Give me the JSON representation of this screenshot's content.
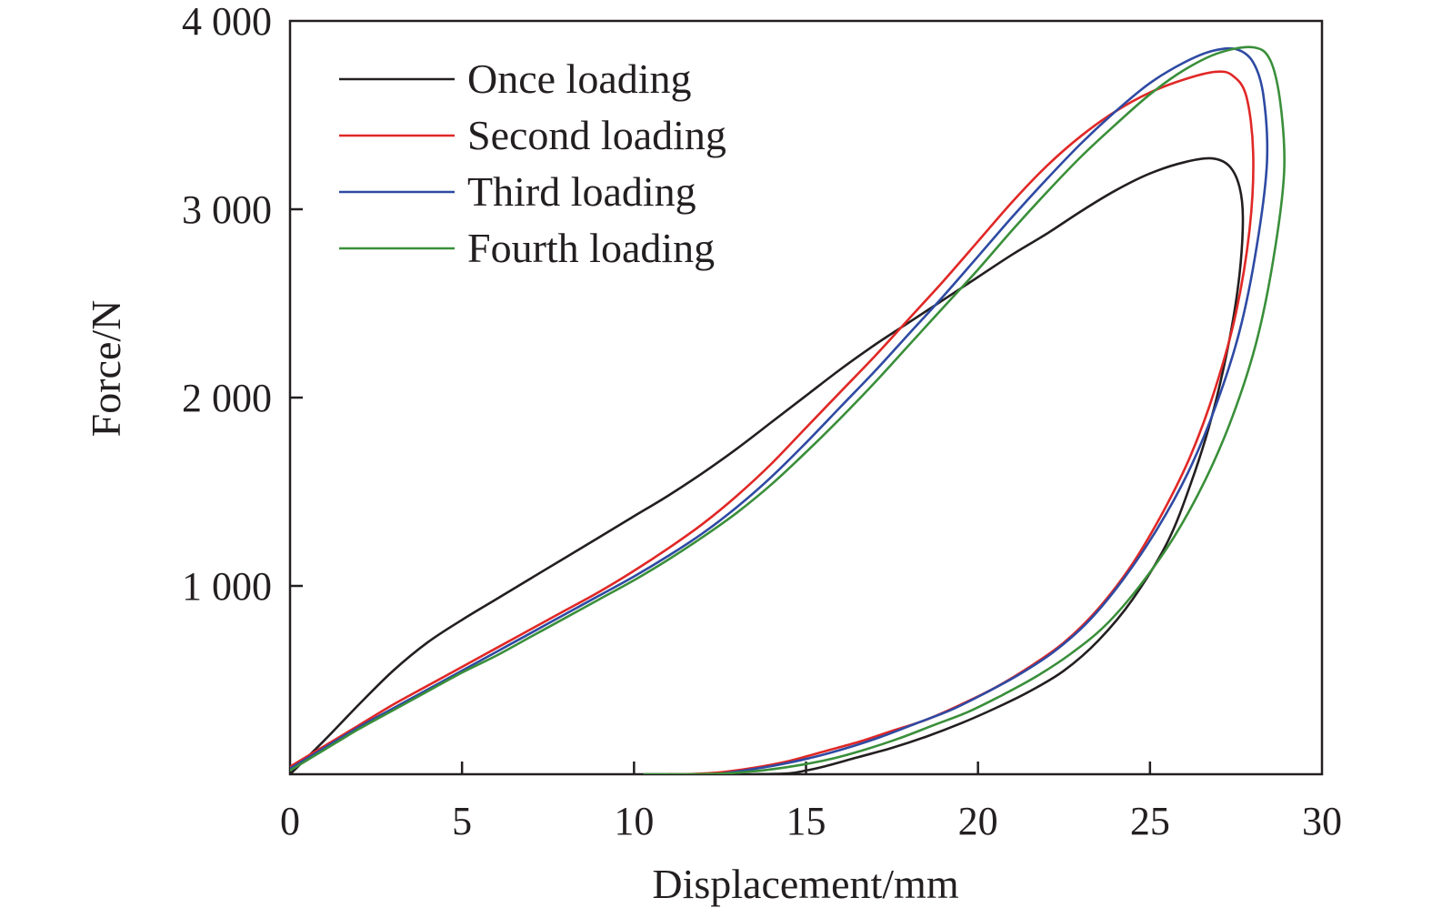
{
  "chart_data": {
    "type": "line",
    "title": "",
    "xlabel": "Displacement/mm",
    "ylabel": "Force/N",
    "xlim": [
      0,
      30
    ],
    "ylim": [
      0,
      4000
    ],
    "xticks": [
      0,
      5,
      10,
      15,
      20,
      25,
      30
    ],
    "xtick_labels": [
      "0",
      "5",
      "10",
      "15",
      "20",
      "25",
      "30"
    ],
    "yticks": [
      1000,
      2000,
      3000,
      4000
    ],
    "ytick_labels": [
      "1 000",
      "2 000",
      "3 000",
      "4 000"
    ],
    "grid": false,
    "legend_position": "top-left",
    "series": [
      {
        "name": "Once loading",
        "color": "#231f20",
        "points": [
          [
            0,
            0
          ],
          [
            1,
            180
          ],
          [
            2,
            370
          ],
          [
            3,
            550
          ],
          [
            4,
            700
          ],
          [
            5,
            820
          ],
          [
            6,
            930
          ],
          [
            7,
            1040
          ],
          [
            8,
            1150
          ],
          [
            9,
            1260
          ],
          [
            10,
            1370
          ],
          [
            11,
            1480
          ],
          [
            12,
            1600
          ],
          [
            13,
            1730
          ],
          [
            14,
            1870
          ],
          [
            15,
            2010
          ],
          [
            16,
            2150
          ],
          [
            17,
            2280
          ],
          [
            18,
            2400
          ],
          [
            19,
            2520
          ],
          [
            20,
            2640
          ],
          [
            21,
            2760
          ],
          [
            22,
            2870
          ],
          [
            23,
            2990
          ],
          [
            24,
            3100
          ],
          [
            25,
            3190
          ],
          [
            26,
            3250
          ],
          [
            26.8,
            3270
          ],
          [
            27.3,
            3230
          ],
          [
            27.6,
            3120
          ],
          [
            27.7,
            2950
          ],
          [
            27.6,
            2650
          ],
          [
            27.3,
            2300
          ],
          [
            26.8,
            1900
          ],
          [
            26.2,
            1550
          ],
          [
            25.5,
            1230
          ],
          [
            24.5,
            930
          ],
          [
            23.5,
            710
          ],
          [
            22.5,
            550
          ],
          [
            21.5,
            440
          ],
          [
            20.5,
            350
          ],
          [
            19.5,
            270
          ],
          [
            18.5,
            200
          ],
          [
            17.5,
            140
          ],
          [
            16.5,
            90
          ],
          [
            15.5,
            40
          ],
          [
            15,
            20
          ],
          [
            14.5,
            5
          ],
          [
            13.5,
            0
          ]
        ]
      },
      {
        "name": "Second loading",
        "color": "#e02826",
        "points": [
          [
            0,
            40
          ],
          [
            1,
            150
          ],
          [
            2,
            260
          ],
          [
            3,
            370
          ],
          [
            4,
            470
          ],
          [
            5,
            570
          ],
          [
            6,
            670
          ],
          [
            7,
            770
          ],
          [
            8,
            870
          ],
          [
            9,
            970
          ],
          [
            10,
            1080
          ],
          [
            11,
            1200
          ],
          [
            12,
            1330
          ],
          [
            13,
            1480
          ],
          [
            14,
            1650
          ],
          [
            15,
            1840
          ],
          [
            16,
            2030
          ],
          [
            17,
            2220
          ],
          [
            18,
            2420
          ],
          [
            19,
            2620
          ],
          [
            20,
            2830
          ],
          [
            21,
            3040
          ],
          [
            22,
            3230
          ],
          [
            23,
            3390
          ],
          [
            24,
            3520
          ],
          [
            25,
            3620
          ],
          [
            26,
            3690
          ],
          [
            26.9,
            3730
          ],
          [
            27.4,
            3710
          ],
          [
            27.8,
            3600
          ],
          [
            28.0,
            3300
          ],
          [
            27.9,
            2900
          ],
          [
            27.5,
            2450
          ],
          [
            26.9,
            2050
          ],
          [
            26.2,
            1700
          ],
          [
            25.4,
            1400
          ],
          [
            24.5,
            1120
          ],
          [
            23.5,
            880
          ],
          [
            22.5,
            700
          ],
          [
            21.5,
            570
          ],
          [
            20.5,
            460
          ],
          [
            19.5,
            370
          ],
          [
            18.5,
            290
          ],
          [
            17.5,
            230
          ],
          [
            16.5,
            170
          ],
          [
            15.5,
            120
          ],
          [
            14.5,
            70
          ],
          [
            13.5,
            35
          ],
          [
            12.5,
            10
          ],
          [
            11.5,
            0
          ],
          [
            11,
            0
          ]
        ]
      },
      {
        "name": "Third loading",
        "color": "#2e4aa3",
        "points": [
          [
            0,
            30
          ],
          [
            1,
            140
          ],
          [
            2,
            250
          ],
          [
            3,
            350
          ],
          [
            4,
            450
          ],
          [
            5,
            550
          ],
          [
            6,
            650
          ],
          [
            7,
            750
          ],
          [
            8,
            850
          ],
          [
            9,
            950
          ],
          [
            10,
            1050
          ],
          [
            11,
            1160
          ],
          [
            12,
            1280
          ],
          [
            13,
            1420
          ],
          [
            14,
            1580
          ],
          [
            15,
            1760
          ],
          [
            16,
            1950
          ],
          [
            17,
            2140
          ],
          [
            18,
            2340
          ],
          [
            19,
            2540
          ],
          [
            20,
            2750
          ],
          [
            21,
            2960
          ],
          [
            22,
            3160
          ],
          [
            23,
            3350
          ],
          [
            24,
            3520
          ],
          [
            25,
            3670
          ],
          [
            26,
            3780
          ],
          [
            26.8,
            3840
          ],
          [
            27.5,
            3850
          ],
          [
            28.0,
            3780
          ],
          [
            28.3,
            3600
          ],
          [
            28.4,
            3250
          ],
          [
            28.1,
            2800
          ],
          [
            27.6,
            2350
          ],
          [
            26.9,
            1950
          ],
          [
            26.1,
            1600
          ],
          [
            25.2,
            1300
          ],
          [
            24.2,
            1030
          ],
          [
            23.2,
            810
          ],
          [
            22.2,
            650
          ],
          [
            21.2,
            530
          ],
          [
            20.2,
            430
          ],
          [
            19.2,
            340
          ],
          [
            18.2,
            270
          ],
          [
            17.2,
            200
          ],
          [
            16.2,
            140
          ],
          [
            15.2,
            90
          ],
          [
            14.2,
            50
          ],
          [
            13.2,
            20
          ],
          [
            12.4,
            0
          ]
        ]
      },
      {
        "name": "Fourth loading",
        "color": "#3a8f3a",
        "points": [
          [
            0,
            20
          ],
          [
            1,
            130
          ],
          [
            2,
            240
          ],
          [
            3,
            340
          ],
          [
            4,
            440
          ],
          [
            5,
            540
          ],
          [
            6,
            630
          ],
          [
            7,
            730
          ],
          [
            8,
            830
          ],
          [
            9,
            930
          ],
          [
            10,
            1030
          ],
          [
            11,
            1140
          ],
          [
            12,
            1260
          ],
          [
            13,
            1390
          ],
          [
            14,
            1540
          ],
          [
            15,
            1710
          ],
          [
            16,
            1890
          ],
          [
            17,
            2080
          ],
          [
            18,
            2280
          ],
          [
            19,
            2480
          ],
          [
            20,
            2680
          ],
          [
            21,
            2890
          ],
          [
            22,
            3090
          ],
          [
            23,
            3280
          ],
          [
            24,
            3450
          ],
          [
            25,
            3610
          ],
          [
            26,
            3740
          ],
          [
            27,
            3830
          ],
          [
            28.0,
            3860
          ],
          [
            28.5,
            3790
          ],
          [
            28.8,
            3550
          ],
          [
            28.9,
            3200
          ],
          [
            28.6,
            2750
          ],
          [
            28.1,
            2300
          ],
          [
            27.4,
            1900
          ],
          [
            26.6,
            1560
          ],
          [
            25.7,
            1260
          ],
          [
            24.7,
            1000
          ],
          [
            23.7,
            790
          ],
          [
            22.7,
            640
          ],
          [
            21.7,
            520
          ],
          [
            20.7,
            420
          ],
          [
            19.7,
            330
          ],
          [
            18.7,
            260
          ],
          [
            17.7,
            190
          ],
          [
            16.7,
            130
          ],
          [
            15.7,
            80
          ],
          [
            14.7,
            45
          ],
          [
            13.7,
            20
          ],
          [
            12.7,
            5
          ],
          [
            11.5,
            0
          ],
          [
            10.3,
            0
          ]
        ]
      }
    ]
  }
}
